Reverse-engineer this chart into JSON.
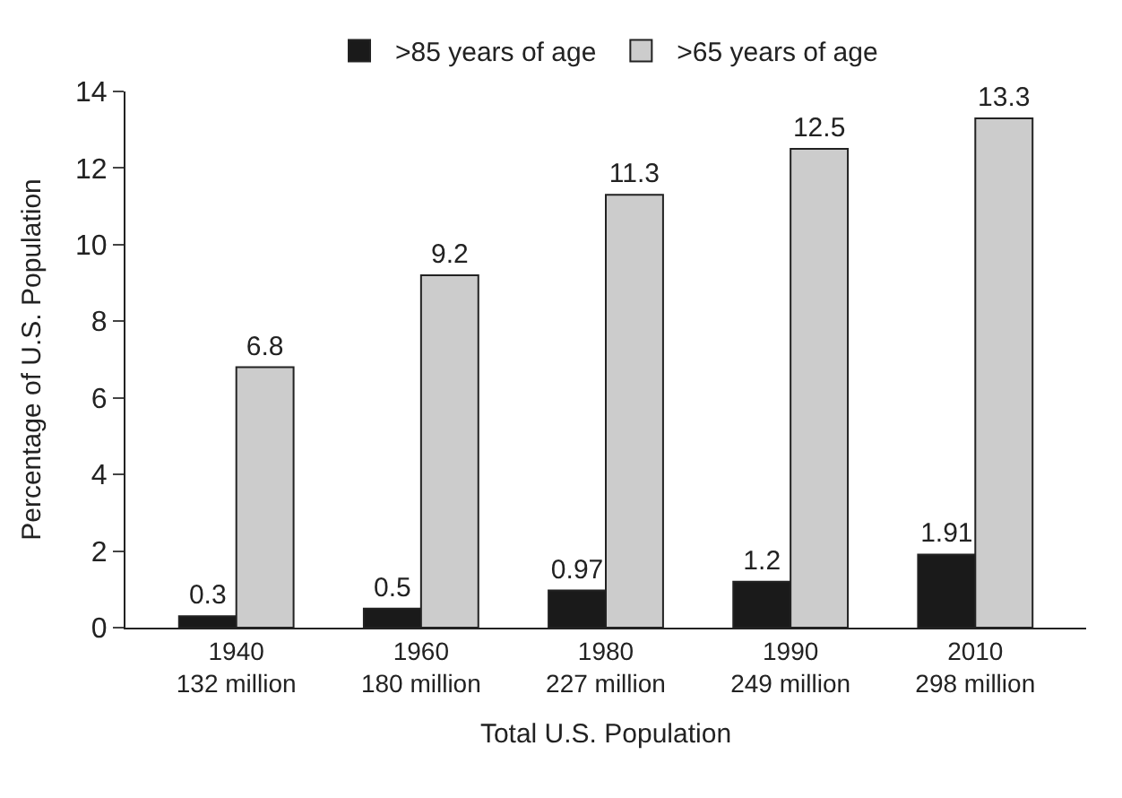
{
  "chart_data": {
    "type": "bar",
    "xlabel": "Total U.S. Population",
    "ylabel": "Percentage of U.S. Population",
    "categories": [
      "1940\n132 million",
      "1960\n180 million",
      "1980\n227 million",
      "1990\n249 million",
      "2010\n298 million"
    ],
    "series": [
      {
        "name": ">85 years of age",
        "color": "#1a1a1a",
        "values": [
          0.3,
          0.5,
          0.97,
          1.2,
          1.91
        ]
      },
      {
        "name": ">65 years of age",
        "color": "#cccccc",
        "values": [
          6.8,
          9.2,
          11.3,
          12.5,
          13.3
        ]
      }
    ],
    "ylim": [
      0,
      14
    ],
    "yticks": [
      0,
      2,
      4,
      6,
      8,
      10,
      12,
      14
    ],
    "data_labels": true,
    "legend": "top"
  }
}
